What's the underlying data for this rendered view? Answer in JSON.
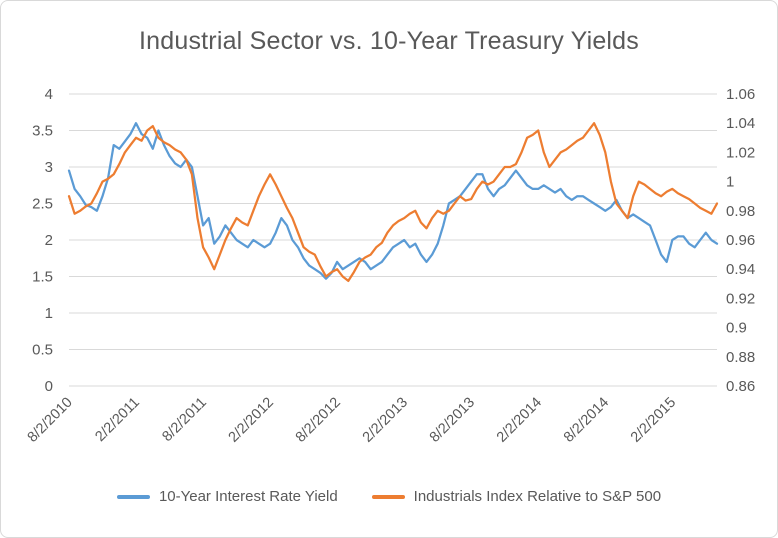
{
  "colors": {
    "text": "#595959",
    "gridline": "#d9d9d9",
    "border": "#d9d9d9",
    "background": "#ffffff",
    "series_blue": "#5B9BD5",
    "series_orange": "#ED7D31"
  },
  "chart_data": {
    "type": "line",
    "title": "Industrial Sector vs. 10-Year Treasury Yields",
    "grid": "horizontal",
    "legend_position": "bottom",
    "x_axis": {
      "tick_labels": [
        "8/2/2010",
        "2/2/2011",
        "8/2/2011",
        "2/2/2012",
        "8/2/2012",
        "2/2/2013",
        "8/2/2013",
        "2/2/2014",
        "8/2/2014",
        "2/2/2015"
      ],
      "tick_interval_months": 6,
      "total_months": 58,
      "point_step_months": 0.5,
      "labels_rotation_deg": -45
    },
    "left_axis": {
      "min": 0,
      "max": 4,
      "step": 0.5,
      "tick_labels_top_to_bottom": [
        "4",
        "3.5",
        "3",
        "2.5",
        "2",
        "1.5",
        "1",
        "0.5",
        "0"
      ]
    },
    "right_axis": {
      "min": 0.86,
      "max": 1.06,
      "step": 0.02,
      "tick_labels_top_to_bottom": [
        "1.06",
        "1.04",
        "1.02",
        "1",
        "0.98",
        "0.96",
        "0.94",
        "0.92",
        "0.9",
        "0.88",
        "0.86"
      ]
    },
    "series": [
      {
        "name": "10-Year Interest Rate Yield",
        "axis": "left",
        "color": "#5B9BD5",
        "values": [
          2.95,
          2.7,
          2.6,
          2.48,
          2.45,
          2.4,
          2.6,
          2.85,
          3.3,
          3.25,
          3.35,
          3.45,
          3.6,
          3.45,
          3.4,
          3.25,
          3.5,
          3.3,
          3.15,
          3.05,
          3.0,
          3.1,
          3.0,
          2.6,
          2.2,
          2.3,
          1.95,
          2.05,
          2.2,
          2.1,
          2.0,
          1.95,
          1.9,
          2.0,
          1.95,
          1.9,
          1.95,
          2.1,
          2.3,
          2.2,
          2.0,
          1.9,
          1.75,
          1.65,
          1.6,
          1.55,
          1.47,
          1.55,
          1.7,
          1.6,
          1.65,
          1.7,
          1.75,
          1.7,
          1.6,
          1.65,
          1.7,
          1.8,
          1.9,
          1.95,
          2.0,
          1.9,
          1.95,
          1.8,
          1.7,
          1.8,
          1.95,
          2.2,
          2.5,
          2.55,
          2.6,
          2.7,
          2.8,
          2.9,
          2.9,
          2.7,
          2.6,
          2.7,
          2.75,
          2.85,
          2.95,
          2.85,
          2.75,
          2.7,
          2.7,
          2.75,
          2.7,
          2.65,
          2.7,
          2.6,
          2.55,
          2.6,
          2.6,
          2.55,
          2.5,
          2.45,
          2.4,
          2.45,
          2.55,
          2.4,
          2.3,
          2.35,
          2.3,
          2.25,
          2.2,
          2.0,
          1.8,
          1.7,
          2.0,
          2.05,
          2.05,
          1.95,
          1.9,
          2.0,
          2.1,
          2.0,
          1.95
        ]
      },
      {
        "name": "Industrials Index Relative to S&P 500",
        "axis": "right",
        "color": "#ED7D31",
        "values": [
          0.99,
          0.978,
          0.98,
          0.983,
          0.985,
          0.992,
          1.0,
          1.002,
          1.005,
          1.012,
          1.02,
          1.025,
          1.03,
          1.028,
          1.035,
          1.038,
          1.03,
          1.027,
          1.025,
          1.022,
          1.02,
          1.015,
          1.005,
          0.975,
          0.955,
          0.948,
          0.94,
          0.95,
          0.96,
          0.968,
          0.975,
          0.972,
          0.97,
          0.98,
          0.99,
          0.998,
          1.005,
          0.998,
          0.99,
          0.982,
          0.975,
          0.965,
          0.955,
          0.952,
          0.95,
          0.942,
          0.935,
          0.938,
          0.94,
          0.935,
          0.932,
          0.938,
          0.945,
          0.948,
          0.95,
          0.955,
          0.958,
          0.965,
          0.97,
          0.973,
          0.975,
          0.978,
          0.98,
          0.972,
          0.968,
          0.975,
          0.98,
          0.978,
          0.98,
          0.985,
          0.99,
          0.987,
          0.988,
          0.995,
          1.0,
          0.998,
          1.0,
          1.005,
          1.01,
          1.01,
          1.012,
          1.02,
          1.03,
          1.032,
          1.035,
          1.02,
          1.01,
          1.015,
          1.02,
          1.022,
          1.025,
          1.028,
          1.03,
          1.035,
          1.04,
          1.032,
          1.02,
          1.0,
          0.985,
          0.98,
          0.975,
          0.99,
          1.0,
          0.998,
          0.995,
          0.992,
          0.99,
          0.993,
          0.995,
          0.992,
          0.99,
          0.988,
          0.985,
          0.982,
          0.98,
          0.978,
          0.985
        ]
      }
    ]
  }
}
